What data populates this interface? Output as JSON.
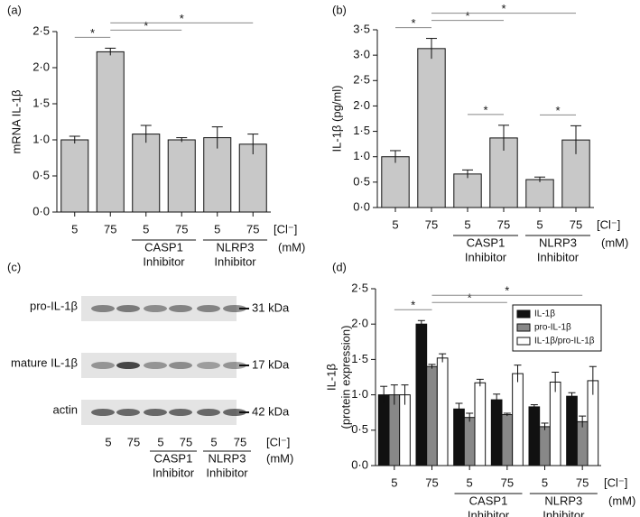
{
  "chart_data": [
    {
      "type": "bar",
      "panel_label": "(a)",
      "ylabel": "mRNA IL-1β",
      "categories": [
        "5",
        "75",
        "5",
        "75",
        "5",
        "75"
      ],
      "values": [
        1.0,
        2.22,
        1.08,
        1.0,
        1.03,
        0.94
      ],
      "errors": [
        0.05,
        0.05,
        0.12,
        0.03,
        0.15,
        0.14
      ],
      "color": "#c8c8c8",
      "ylim": [
        0,
        2.5
      ],
      "yticks": [
        {
          "value": 0,
          "label": "0·0"
        },
        {
          "value": 0.5,
          "label": "0·5"
        },
        {
          "value": 1,
          "label": "1·0"
        },
        {
          "value": 1.5,
          "label": "1·5"
        },
        {
          "value": 2,
          "label": "2·0"
        },
        {
          "value": 2.5,
          "label": "2·5"
        }
      ],
      "groups": [
        {
          "name": "CASP1",
          "sub": "Inhibitor",
          "from": 2,
          "to": 3
        },
        {
          "name": "NLRP3",
          "sub": "Inhibitor",
          "from": 4,
          "to": 5
        }
      ],
      "x_unit": "[Cl⁻]",
      "x_unit2": "(mM)",
      "significance": [
        {
          "from": 0,
          "to": 1,
          "label": "*"
        },
        {
          "from": 1,
          "to": 3,
          "label": "*"
        },
        {
          "from": 1,
          "to": 5,
          "label": "*"
        }
      ]
    },
    {
      "type": "bar",
      "panel_label": "(b)",
      "ylabel": "IL-1β (pg/ml)",
      "categories": [
        "5",
        "75",
        "5",
        "75",
        "5",
        "75"
      ],
      "values": [
        1.0,
        3.13,
        0.66,
        1.37,
        0.55,
        1.33
      ],
      "errors": [
        0.12,
        0.2,
        0.08,
        0.25,
        0.05,
        0.28
      ],
      "color": "#c8c8c8",
      "ylim": [
        0,
        3.5
      ],
      "yticks": [
        {
          "value": 0,
          "label": "0·0"
        },
        {
          "value": 0.5,
          "label": "0·5"
        },
        {
          "value": 1,
          "label": "1·0"
        },
        {
          "value": 1.5,
          "label": "1·5"
        },
        {
          "value": 2,
          "label": "2·0"
        },
        {
          "value": 2.5,
          "label": "2·5"
        },
        {
          "value": 3,
          "label": "3·0"
        },
        {
          "value": 3.5,
          "label": "3·5"
        }
      ],
      "groups": [
        {
          "name": "CASP1",
          "sub": "Inhibitor",
          "from": 2,
          "to": 3
        },
        {
          "name": "NLRP3",
          "sub": "Inhibitor",
          "from": 4,
          "to": 5
        }
      ],
      "x_unit": "[Cl⁻]",
      "x_unit2": "(mM)",
      "significance": [
        {
          "from": 0,
          "to": 1,
          "label": "*"
        },
        {
          "from": 1,
          "to": 3,
          "label": "*"
        },
        {
          "from": 1,
          "to": 5,
          "label": "*"
        },
        {
          "from": 2,
          "to": 3,
          "label": "*"
        },
        {
          "from": 4,
          "to": 5,
          "label": "*"
        }
      ]
    },
    {
      "type": "grouped_bar",
      "panel_label": "(d)",
      "ylabel": [
        "IL-1β",
        "(protein expression)"
      ],
      "categories": [
        "5",
        "75",
        "5",
        "75",
        "5",
        "75"
      ],
      "series": [
        {
          "name": "IL-1β",
          "color": "#111111",
          "values": [
            1.0,
            2.0,
            0.8,
            0.93,
            0.83,
            0.98
          ],
          "errors": [
            0.12,
            0.05,
            0.08,
            0.08,
            0.03,
            0.05
          ]
        },
        {
          "name": "pro-IL-1β",
          "color": "#888888",
          "values": [
            1.0,
            1.4,
            0.68,
            0.72,
            0.55,
            0.62
          ],
          "errors": [
            0.14,
            0.03,
            0.06,
            0.02,
            0.05,
            0.08
          ]
        },
        {
          "name": "IL-1β/pro-IL-1β",
          "color": "#ffffff",
          "values": [
            1.0,
            1.52,
            1.17,
            1.3,
            1.18,
            1.2
          ],
          "errors": [
            0.14,
            0.06,
            0.05,
            0.12,
            0.14,
            0.2
          ]
        }
      ],
      "legend": "top-right",
      "ylim": [
        0,
        2.5
      ],
      "yticks": [
        {
          "value": 0,
          "label": "0·0"
        },
        {
          "value": 0.5,
          "label": "0·5"
        },
        {
          "value": 1,
          "label": "1·0"
        },
        {
          "value": 1.5,
          "label": "1·5"
        },
        {
          "value": 2,
          "label": "2·0"
        },
        {
          "value": 2.5,
          "label": "2·5"
        }
      ],
      "groups": [
        {
          "name": "CASP1",
          "sub": "Inhibitor",
          "from": 2,
          "to": 3
        },
        {
          "name": "NLRP3",
          "sub": "Inhibitor",
          "from": 4,
          "to": 5
        }
      ],
      "x_unit": "[Cl⁻]",
      "x_unit2": "(mM)",
      "significance": [
        {
          "from": 0,
          "to": 1,
          "label": "*"
        },
        {
          "from": 1,
          "to": 3,
          "label": "*"
        },
        {
          "from": 1,
          "to": 5,
          "label": "*"
        }
      ]
    }
  ],
  "blot": {
    "panel_label": "(c)",
    "rows": [
      {
        "label": "pro-IL-1β",
        "marker": "31 kDa"
      },
      {
        "label": "mature IL-1β",
        "marker": "17 kDa"
      },
      {
        "label": "actin",
        "marker": "42 kDa"
      }
    ],
    "lanes": [
      "5",
      "75",
      "5",
      "75",
      "5",
      "75"
    ],
    "groups": [
      {
        "name": "CASP1",
        "sub": "Inhibitor",
        "from": 2,
        "to": 3
      },
      {
        "name": "NLRP3",
        "sub": "Inhibitor",
        "from": 4,
        "to": 5
      }
    ],
    "x_unit": "[Cl⁻]",
    "x_unit2": "(mM)"
  }
}
